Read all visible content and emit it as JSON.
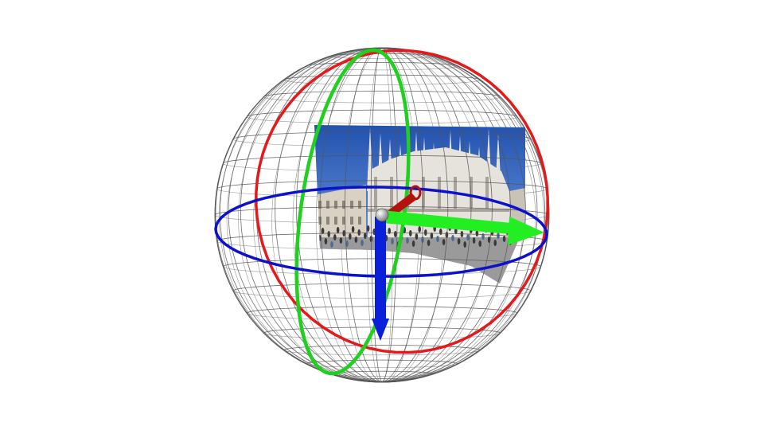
{
  "scene": {
    "background_color": "#ffffff",
    "wireframe_color": "#555555",
    "ring_colors": {
      "roll": "#e31a1c",
      "pitch": "#1fd01f",
      "yaw": "#0b12c9"
    },
    "axis_colors": {
      "x": "#22ee22",
      "y": "#0a1fd9",
      "z": "#b5120f",
      "origin": "#bdbdbd"
    },
    "panorama_colors": {
      "sky_top": "#1f4fae",
      "sky_bottom": "#7ea9e6",
      "cathedral": "#e6e2dc",
      "cathedral_shadow": "#a9a39c",
      "crowd": "#3a3a3a",
      "ground": "#9a9a9a"
    }
  }
}
